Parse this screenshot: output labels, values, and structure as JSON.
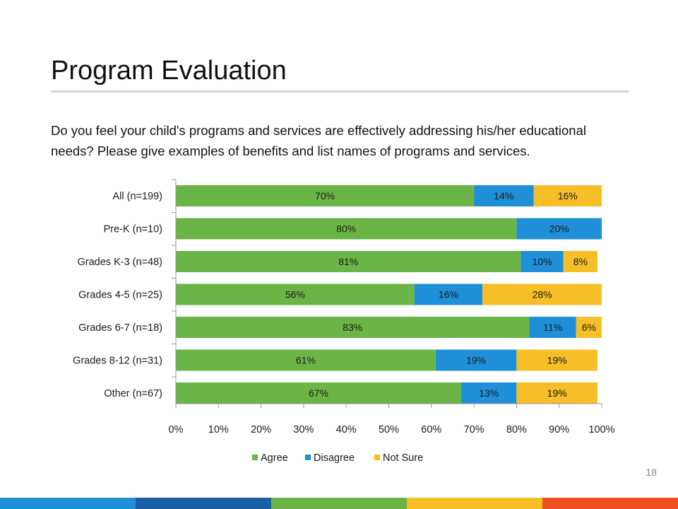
{
  "slide": {
    "title": "Program Evaluation",
    "question": "Do you feel your child's programs and services are effectively addressing his/her educational needs? Please give examples of benefits and list names of programs and services.",
    "page_number": "18",
    "footer_colors": [
      "#1f8fd8",
      "#1a5ea8",
      "#6ab546",
      "#f6be27",
      "#ef4f23"
    ]
  },
  "chart_data": {
    "type": "bar",
    "orientation": "horizontal",
    "stacked": "percent",
    "categories": [
      "All (n=199)",
      "Pre-K (n=10)",
      "Grades K-3 (n=48)",
      "Grades 4-5 (n=25)",
      "Grades 6-7 (n=18)",
      "Grades 8-12 (n=31)",
      "Other (n=67)"
    ],
    "series": [
      {
        "name": "Agree",
        "color": "#6ab546",
        "values": [
          70,
          80,
          81,
          56,
          83,
          61,
          67
        ]
      },
      {
        "name": "Disagree",
        "color": "#1f8fd8",
        "values": [
          14,
          20,
          10,
          16,
          11,
          19,
          13
        ]
      },
      {
        "name": "Not Sure",
        "color": "#f6be27",
        "values": [
          16,
          0,
          8,
          28,
          6,
          19,
          19
        ]
      }
    ],
    "data_labels": [
      [
        "70%",
        "14%",
        "16%"
      ],
      [
        "80%",
        "20%",
        ""
      ],
      [
        "81%",
        "10%",
        "8%"
      ],
      [
        "56%",
        "16%",
        "28%"
      ],
      [
        "83%",
        "11%",
        "6%"
      ],
      [
        "61%",
        "19%",
        "19%"
      ],
      [
        "67%",
        "13%",
        "19%"
      ]
    ],
    "xlim": [
      0,
      100
    ],
    "xticks": [
      "0%",
      "10%",
      "20%",
      "30%",
      "40%",
      "50%",
      "60%",
      "70%",
      "80%",
      "90%",
      "100%"
    ],
    "legend_position": "bottom",
    "grid": false
  }
}
